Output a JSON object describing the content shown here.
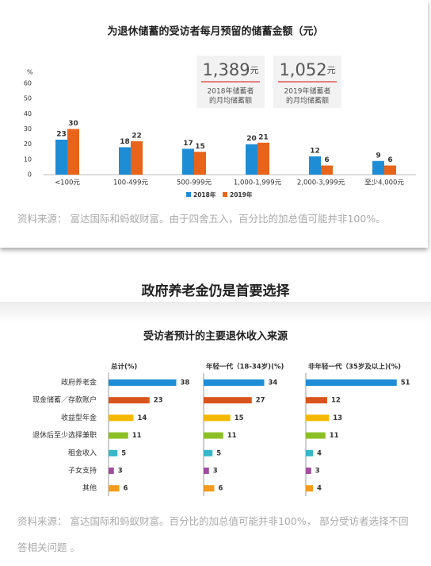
{
  "chart_data": [
    {
      "type": "bar",
      "title": "为退休储蓄的受访者每月预留的储蓄金额（元）",
      "y_unit": "%",
      "categories": [
        "<100元",
        "100-499元",
        "500-999元",
        "1,000-1,999元",
        "2,000-3,999元",
        "至少4,000元"
      ],
      "series": [
        {
          "name": "2018年",
          "color": "#1f8dd6",
          "values": [
            23,
            18,
            17,
            20,
            12,
            9
          ]
        },
        {
          "name": "2019年",
          "color": "#e8641b",
          "values": [
            30,
            22,
            15,
            21,
            6,
            6
          ]
        }
      ],
      "ylim": [
        0,
        60
      ],
      "yticks": [
        0,
        10,
        20,
        30,
        40,
        50,
        60
      ],
      "grid": false,
      "annotations": [
        {
          "amount": "1,389",
          "unit": "元",
          "lines": [
            "2018年储蓄者",
            "的月均储蓄额"
          ]
        },
        {
          "amount": "1,052",
          "unit": "元",
          "lines": [
            "2019年储蓄者",
            "的月均储蓄额"
          ]
        }
      ]
    },
    {
      "type": "hbar-panels",
      "title": "受访者预计的主要退休收入来源",
      "categories": [
        "政府养老金",
        "现金储蓄／存款账户",
        "收益型年金",
        "退休后至少选择兼职",
        "租金收入",
        "子女支持",
        "其他"
      ],
      "colors": [
        "#1f8dd6",
        "#d9541c",
        "#f5b800",
        "#8cbf26",
        "#36b8c9",
        "#a04d9e",
        "#f39c1c"
      ],
      "series": [
        {
          "name": "总计(%)",
          "values": [
            38,
            23,
            14,
            11,
            5,
            3,
            6
          ]
        },
        {
          "name": "年轻一代（18-34岁)(%)",
          "values": [
            34,
            27,
            15,
            11,
            5,
            3,
            6
          ]
        },
        {
          "name": "非年轻一代（35岁及以上)(%)",
          "values": [
            51,
            12,
            13,
            11,
            4,
            3,
            4
          ]
        }
      ]
    }
  ],
  "source_1": "资料来源： 富达国际和蚂蚁财富。由于四舍五入，百分比的加总值可能并非100%。",
  "section_title": "政府养老金仍是首要选择",
  "source_2": "资料来源： 富达国际和蚂蚁财富。百分比的加总值可能并非100%， 部分受访者选择不回答相关问题 。"
}
